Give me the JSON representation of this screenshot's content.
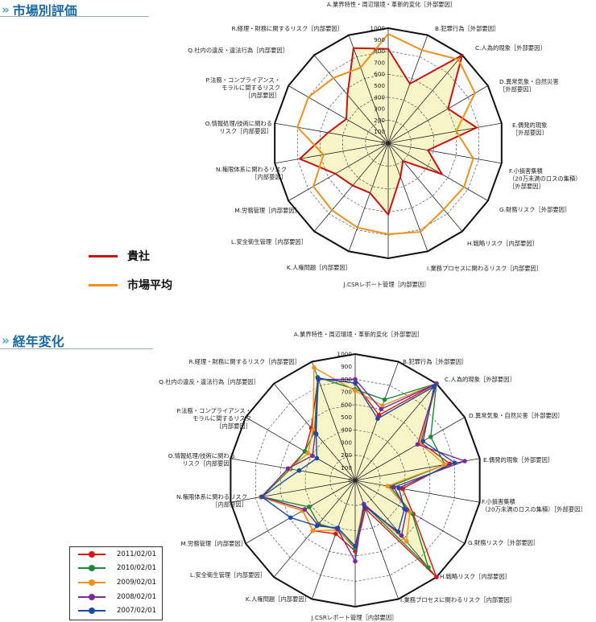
{
  "sections": {
    "market": {
      "title": "市場別評価"
    },
    "trend": {
      "title": "経年変化"
    }
  },
  "colors": {
    "company": "#cc1111",
    "market_avg": "#f0901c",
    "fill": "#f7f5c8",
    "2011/02/01": "#dd1111",
    "2010/02/01": "#1a8a3a",
    "2009/02/01": "#f0901c",
    "2008/02/01": "#7a2a9a",
    "2007/02/01": "#1a4aa8"
  },
  "legend_market": [
    {
      "label": "貴社",
      "color": "#cc1111"
    },
    {
      "label": "市場平均",
      "color": "#f0901c"
    }
  ],
  "legend_trend": [
    {
      "label": "2011/02/01",
      "color": "#dd1111"
    },
    {
      "label": "2010/02/01",
      "color": "#1a8a3a"
    },
    {
      "label": "2009/02/01",
      "color": "#f0901c"
    },
    {
      "label": "2008/02/01",
      "color": "#7a2a9a"
    },
    {
      "label": "2007/02/01",
      "color": "#1a4aa8"
    }
  ],
  "chart_data": [
    {
      "type": "radar",
      "title": "市場別評価",
      "rlim": [
        0,
        1000
      ],
      "ticks": [
        "0",
        "100",
        "200",
        "300",
        "400",
        "500",
        "600",
        "700",
        "800",
        "900",
        "1000"
      ],
      "categories": [
        [
          "A.業界特性・周辺環境・革新的変化［外部要因］"
        ],
        [
          "B.犯罪行為［外部要因］"
        ],
        [
          "C.人為的現象［外部要因］"
        ],
        [
          "D.異常気象・自然災害",
          "［外部要因］"
        ],
        [
          "E.偶発的現象",
          "［外部要因］"
        ],
        [
          "F.小損害集積",
          "（20万未満のロスの集積）",
          "［外部要因］"
        ],
        [
          "G.財務リスク［外部要因］"
        ],
        [
          "H.戦略リスク［内部要因］"
        ],
        [
          "I.業務プロセスに関わるリスク［内部要因］"
        ],
        [
          "J.CSRレポート管理［内部要因］"
        ],
        [
          "K.人権問題［内部要因］"
        ],
        [
          "L.安全衛生管理［内部要因］"
        ],
        [
          "M.労務管理［内部要因］"
        ],
        [
          "N.権限体系に関わるリスク",
          "［内部要因］"
        ],
        [
          "O.情報処理/技術に関わる",
          "リスク［内部要因］"
        ],
        [
          "P.法務・コンプライアンス・",
          "モラルに関するリスク",
          "［内部要因］"
        ],
        [
          "Q.社内の違反・違法行為［内部要因］"
        ],
        [
          "R.経理・財務に関するリスク［内部要因］"
        ]
      ],
      "series": [
        {
          "name": "貴社",
          "values": [
            820,
            550,
            1000,
            600,
            780,
            350,
            540,
            200,
            310,
            620,
            460,
            480,
            530,
            780,
            530,
            420,
            550,
            880
          ]
        },
        {
          "name": "市場平均",
          "values": [
            950,
            860,
            950,
            870,
            600,
            750,
            760,
            750,
            820,
            790,
            780,
            760,
            750,
            570,
            800,
            800,
            740,
            700
          ]
        }
      ]
    },
    {
      "type": "radar",
      "title": "経年変化",
      "rlim": [
        0,
        1000
      ],
      "ticks": [
        "0",
        "100",
        "200",
        "300",
        "400",
        "500",
        "600",
        "700",
        "800",
        "900",
        "1000"
      ],
      "categories": [
        [
          "A.業界特性・周辺環境・革新的変化［外部要因］"
        ],
        [
          "B.犯罪行為［外部要因］"
        ],
        [
          "C.人為的現象［外部要因］"
        ],
        [
          "D.異常気象・自然災害［外部要因］"
        ],
        [
          "E.偶発的現象［外部要因］"
        ],
        [
          "F.小損害集積",
          "（20万未満のロスの集積）［外部要因］"
        ],
        [
          "G.財務リスク［外部要因］"
        ],
        [
          "H.戦略リスク［内部要因］"
        ],
        [
          "I.業務プロセスに関わるリスク［内部要因］"
        ],
        [
          "J.CSRレポート管理［内部要因］"
        ],
        [
          "K.人権問題［内部要因］"
        ],
        [
          "L.安全衛生管理［内部要因］"
        ],
        [
          "M.労務管理［内部要因］"
        ],
        [
          "N.権限体系に関わるリスク",
          "［内部要因］"
        ],
        [
          "O.情報処理/技術に関わる",
          "リスク［内部要因］"
        ],
        [
          "P.法務・コンプライアンス・",
          "モラルに関するリスク",
          "［内部要因］"
        ],
        [
          "Q.社内の違反・違法行為［内部要因］"
        ],
        [
          "R.経理・財務に関するリスク［内部要因］"
        ]
      ],
      "series": [
        {
          "name": "2011/02/01",
          "values": [
            770,
            550,
            1000,
            600,
            760,
            380,
            530,
            1000,
            240,
            560,
            450,
            520,
            480,
            760,
            530,
            460,
            540,
            860
          ]
        },
        {
          "name": "2010/02/01",
          "values": [
            720,
            680,
            1000,
            690,
            720,
            280,
            520,
            900,
            200,
            540,
            410,
            450,
            420,
            750,
            520,
            460,
            500,
            870
          ]
        },
        {
          "name": "2009/02/01",
          "values": [
            710,
            630,
            1000,
            590,
            720,
            260,
            500,
            630,
            200,
            520,
            420,
            520,
            480,
            760,
            530,
            430,
            520,
            950
          ]
        },
        {
          "name": "2008/02/01",
          "values": [
            800,
            600,
            1000,
            570,
            880,
            310,
            470,
            570,
            200,
            640,
            410,
            460,
            460,
            750,
            540,
            390,
            490,
            850
          ]
        },
        {
          "name": "2007/02/01",
          "values": [
            770,
            520,
            970,
            620,
            800,
            350,
            450,
            530,
            220,
            520,
            400,
            470,
            590,
            750,
            450,
            350,
            480,
            860
          ]
        }
      ]
    }
  ]
}
